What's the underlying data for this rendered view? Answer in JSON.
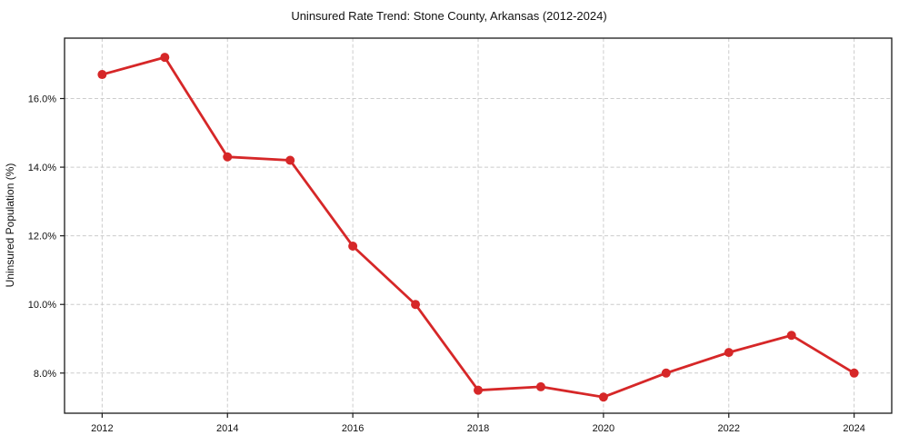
{
  "chart_data": {
    "type": "line",
    "title": "Uninsured Rate Trend: Stone County, Arkansas (2012-2024)",
    "xlabel": "",
    "ylabel": "Uninsured Population (%)",
    "x": [
      2012,
      2013,
      2014,
      2015,
      2016,
      2017,
      2018,
      2019,
      2020,
      2021,
      2022,
      2023,
      2024
    ],
    "series": [
      {
        "name": "uninsured-rate",
        "values": [
          16.7,
          17.2,
          14.3,
          14.2,
          11.7,
          10.0,
          7.5,
          7.6,
          7.3,
          8.0,
          8.6,
          9.1,
          8.0
        ],
        "color": "#d62728",
        "marker": "circle"
      }
    ],
    "x_ticks": [
      2012,
      2014,
      2016,
      2018,
      2020,
      2022,
      2024
    ],
    "x_tick_labels": [
      "2012",
      "2014",
      "2016",
      "2018",
      "2020",
      "2022",
      "2024"
    ],
    "y_ticks": [
      8.0,
      10.0,
      12.0,
      14.0,
      16.0
    ],
    "y_tick_labels": [
      "8.0%",
      "10.0%",
      "12.0%",
      "14.0%",
      "16.0%"
    ],
    "xlim": [
      2011.4,
      2024.6
    ],
    "ylim": [
      6.83,
      17.76
    ],
    "grid": true,
    "grid_style": "dashed",
    "legend": null
  },
  "colors": {
    "line": "#d62728",
    "marker": "#d62728",
    "grid": "#cccccc",
    "spine": "#1a1a1a",
    "text": "#111111",
    "background": "#ffffff"
  }
}
